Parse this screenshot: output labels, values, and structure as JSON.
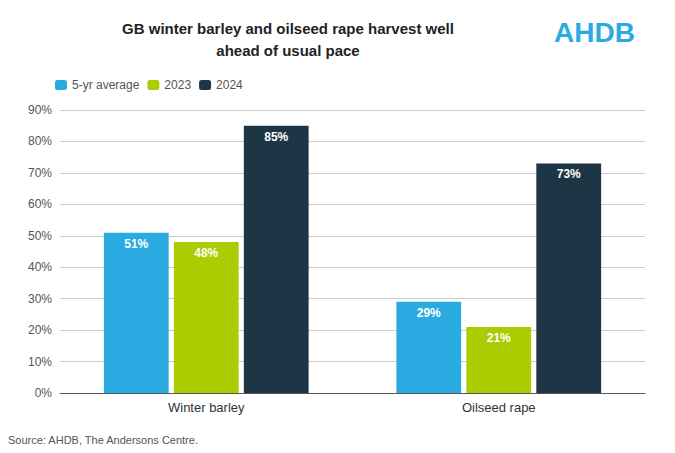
{
  "chart_data": {
    "type": "bar",
    "title": "GB winter barley and oilseed rape harvest well\nahead of usual pace",
    "categories": [
      "Winter barley",
      "Oilseed rape"
    ],
    "series": [
      {
        "name": "5-yr average",
        "color": "#29ABE2",
        "values": [
          0.51,
          0.29
        ],
        "value_labels": [
          "51%",
          "29%"
        ]
      },
      {
        "name": "2023",
        "color": "#AACC00",
        "values": [
          0.48,
          0.21
        ],
        "value_labels": [
          "48%",
          "21%"
        ]
      },
      {
        "name": "2024",
        "color": "#1D3545",
        "values": [
          0.85,
          0.73
        ],
        "value_labels": [
          "85%",
          "73%"
        ]
      }
    ],
    "ylim": [
      0,
      0.9
    ],
    "yticks": [
      {
        "value": 0.0,
        "label": "0%"
      },
      {
        "value": 0.1,
        "label": "10%"
      },
      {
        "value": 0.2,
        "label": "20%"
      },
      {
        "value": 0.3,
        "label": "30%"
      },
      {
        "value": 0.4,
        "label": "40%"
      },
      {
        "value": 0.5,
        "label": "50%"
      },
      {
        "value": 0.6,
        "label": "60%"
      },
      {
        "value": 0.7,
        "label": "70%"
      },
      {
        "value": 0.8,
        "label": "80%"
      },
      {
        "value": 0.9,
        "label": "90%"
      }
    ],
    "grid": true,
    "legend": "top",
    "data_labels": true,
    "annotations": [
      "Source: AHDB, The Andersons Centre.",
      "AHDB"
    ]
  }
}
